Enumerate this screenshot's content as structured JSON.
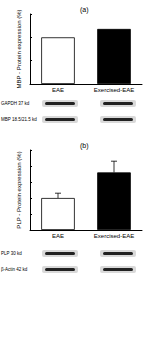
{
  "chart_data": [
    {
      "type": "bar",
      "title": "(a)",
      "ylabel": "MBP - Protein expression (%)",
      "categories": [
        "EAE",
        "Exercised-EAE"
      ],
      "values": [
        100,
        118
      ],
      "colors": [
        "#ffffff",
        "#000000"
      ],
      "ylim": [
        0,
        150
      ],
      "yticks": [
        0,
        50,
        100,
        150
      ],
      "tick_labels": "x",
      "annotations": [
        "GAPDH 37 kd",
        "MBP 18.5/21.5 kd"
      ]
    },
    {
      "type": "bar",
      "title": "(b)",
      "ylabel": "PLP - Protein expression (%)",
      "categories": [
        "EAE",
        "Exercised-EAE"
      ],
      "values": [
        100,
        180
      ],
      "errors": [
        15,
        35
      ],
      "colors": [
        "#ffffff",
        "#000000"
      ],
      "ylim": [
        0,
        250
      ],
      "yticks": [
        0,
        50,
        100,
        150,
        200,
        250
      ],
      "tick_labels": "x",
      "annotations": [
        "PLP 30 kd",
        "β-Actin 42 kd"
      ]
    }
  ]
}
